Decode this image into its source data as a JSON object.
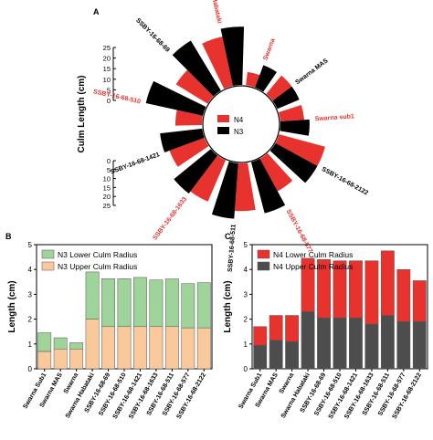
{
  "panel_labels": {
    "a": "A",
    "b": "B",
    "c": "C"
  },
  "chart_data": [
    {
      "panel": "A",
      "type": "radial-bar",
      "ylabel": "Culm Length (cm)",
      "radial_ticks": [
        "0",
        "5",
        "10",
        "15",
        "20",
        "25"
      ],
      "radial_ticks_lower": [
        "0",
        "5",
        "10",
        "15",
        "20",
        "25"
      ],
      "legend": [
        "N4",
        "N3"
      ],
      "categories": [
        "Swarna",
        "Swarna MAS",
        "Swarna sub1",
        "SSBY-16-68-2122",
        "SSBY-16-68-577",
        "SSBY-16-68-511",
        "SSBY-16-68-1633",
        "SSBY-16-68-1421",
        "SSBY-16-68-510",
        "SSBY-16-68-69",
        "Swarna Habataki"
      ],
      "series": [
        {
          "name": "N4",
          "values": [
            5,
            9,
            9,
            18,
            14,
            18,
            17,
            14,
            10,
            14,
            19
          ]
        },
        {
          "name": "N3",
          "values": [
            9,
            9,
            11,
            18,
            20,
            21,
            18,
            16,
            22,
            22,
            22
          ]
        }
      ],
      "ylim": [
        0,
        25
      ]
    },
    {
      "panel": "B",
      "type": "bar",
      "stacked": true,
      "ylabel": "Length (cm)",
      "ylim": [
        0,
        5
      ],
      "yticks": [
        "0",
        "1",
        "2",
        "3",
        "4",
        "5"
      ],
      "categories": [
        "Swarna Sub1",
        "Swarna MAS",
        "Swarna",
        "Swarna Habataki",
        "SSBY-16-68-69",
        "SSBY-16-68-510",
        "SSBY-16-68-1421",
        "SSBY-16-68-1633",
        "SSBY-16-68-511",
        "SSBY-16-68-577",
        "SSBY-16-68-2122"
      ],
      "series": [
        {
          "name": "N3 Upper Culm Radius",
          "values": [
            0.7,
            0.8,
            0.8,
            2.0,
            1.7,
            1.7,
            1.7,
            1.7,
            1.7,
            1.65,
            1.65
          ]
        },
        {
          "name": "N3 Lower Culm Radius",
          "values": [
            0.75,
            0.45,
            0.25,
            1.9,
            1.93,
            1.93,
            1.98,
            1.88,
            1.92,
            1.78,
            1.82
          ]
        }
      ],
      "colors": {
        "upper": "#f9c99b",
        "lower": "#9ed39a"
      }
    },
    {
      "panel": "C",
      "type": "bar",
      "stacked": true,
      "ylabel": "Length (cm)",
      "ylim": [
        0,
        5
      ],
      "yticks": [
        "0",
        "1",
        "2",
        "3",
        "4",
        "5"
      ],
      "categories": [
        "Swarna Sub1",
        "Swarna MAS",
        "Swarna",
        "Swarna Habataki",
        "SSBY-16-68-69",
        "SSBY-16-68-510",
        "SSBY-16-68-1421",
        "SSBY-16-68-1633",
        "SSBY-16-68-511",
        "SSBY-16-68-577",
        "SSBY-16-68-2122"
      ],
      "series": [
        {
          "name": "N4 Upper Culm Radius",
          "values": [
            0.95,
            1.15,
            1.1,
            2.3,
            2.05,
            2.05,
            2.05,
            1.8,
            2.15,
            1.9,
            1.9
          ]
        },
        {
          "name": "N4 Lower Culm Radius",
          "values": [
            0.75,
            1.0,
            1.05,
            2.15,
            2.35,
            2.3,
            2.3,
            2.55,
            2.6,
            2.1,
            1.65
          ]
        }
      ],
      "colors": {
        "upper": "#4d4d4d",
        "lower": "#e8322e"
      }
    }
  ]
}
